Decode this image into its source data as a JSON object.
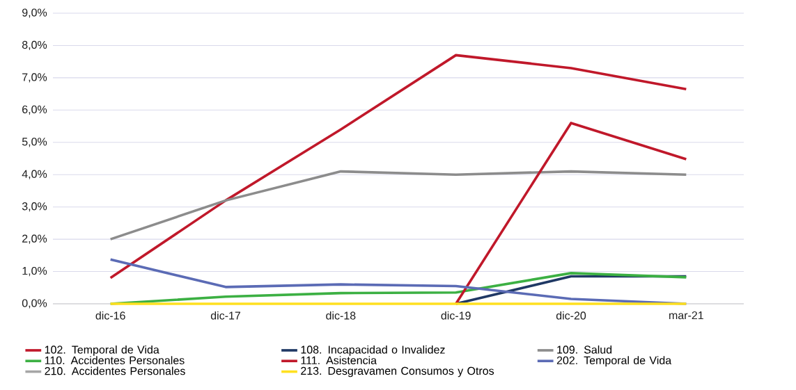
{
  "chart_data": {
    "type": "line",
    "categories": [
      "dic-16",
      "dic-17",
      "dic-18",
      "dic-19",
      "dic-20",
      "mar-21"
    ],
    "ylim": [
      0,
      9
    ],
    "yticks": [
      {
        "value": 0,
        "label": "0,0%"
      },
      {
        "value": 1,
        "label": "1,0%"
      },
      {
        "value": 2,
        "label": "2,0%"
      },
      {
        "value": 3,
        "label": "3,0%"
      },
      {
        "value": 4,
        "label": "4,0%"
      },
      {
        "value": 5,
        "label": "5,0%"
      },
      {
        "value": 6,
        "label": "6,0%"
      },
      {
        "value": 7,
        "label": "7,0%"
      },
      {
        "value": 8,
        "label": "8,0%"
      },
      {
        "value": 9,
        "label": "9,0%"
      }
    ],
    "grid": "y",
    "legend": "bottom",
    "marker": "none",
    "line_style": "solid",
    "series": [
      {
        "name": "102. Temporal de Vida",
        "color": "#c0182a",
        "values": [
          0.8,
          3.2,
          5.4,
          7.7,
          7.3,
          6.65
        ]
      },
      {
        "name": "108. Incapacidad o Invalidez",
        "color": "#1f3864",
        "values": [
          null,
          null,
          null,
          0,
          0.85,
          0.85
        ]
      },
      {
        "name": "109. Salud",
        "color": "#8c8c8c",
        "values": [
          2.0,
          3.2,
          4.1,
          4.0,
          4.1,
          4.0
        ]
      },
      {
        "name": "110. Accidentes Personales",
        "color": "#3cb043",
        "values": [
          0,
          0.22,
          0.33,
          0.35,
          0.95,
          0.82
        ]
      },
      {
        "name": "111. Asistencia",
        "color": "#c0182a",
        "values": [
          null,
          null,
          null,
          0,
          5.6,
          4.48
        ]
      },
      {
        "name": "202. Temporal de Vida",
        "color": "#5b6bb5",
        "values": [
          1.37,
          0.52,
          0.6,
          0.55,
          0.15,
          0
        ]
      },
      {
        "name": "210. Accidentes Personales",
        "color": "#a6a6a6",
        "values": [
          null,
          null,
          null,
          null,
          null,
          null
        ]
      },
      {
        "name": "213. Desgravamen Consumos y Otros",
        "color": "#ffe020",
        "values": [
          0,
          0,
          0,
          0,
          0,
          0
        ]
      }
    ]
  }
}
